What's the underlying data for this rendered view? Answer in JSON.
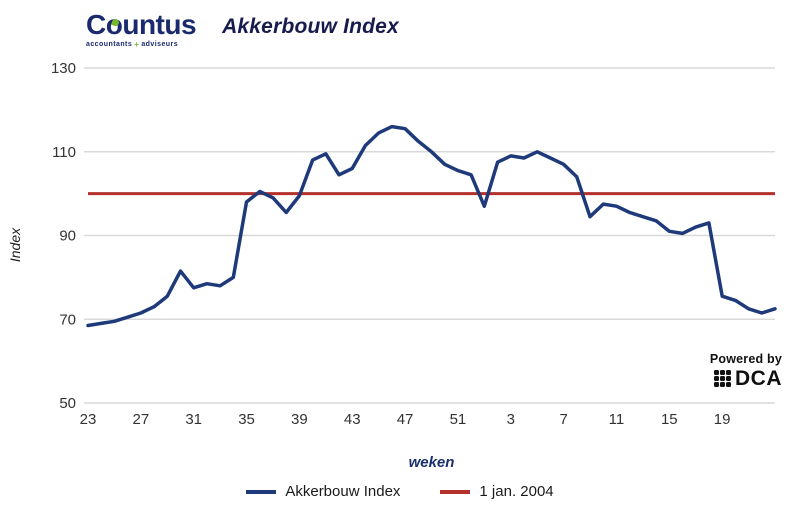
{
  "header": {
    "logo_name": "Countus",
    "logo_tagline_left": "accountants",
    "logo_tagline_right": "adviseurs",
    "title": "Akkerbouw Index"
  },
  "chart_data": {
    "type": "line",
    "title": "Akkerbouw Index",
    "xlabel": "weken",
    "ylabel": "Index",
    "ylim": [
      50,
      130
    ],
    "yticks": [
      130,
      110,
      90,
      70,
      50
    ],
    "xtick_every": 4,
    "xtick_labels_visible": [
      "23",
      "27",
      "31",
      "35",
      "39",
      "43",
      "47",
      "51",
      "3",
      "7",
      "11",
      "15",
      "19"
    ],
    "grid": true,
    "grid_color": "#d9d9d9",
    "tick_color": "#333333",
    "legend_position": "bottom",
    "categories": [
      "23",
      "24",
      "25",
      "26",
      "27",
      "28",
      "29",
      "30",
      "31",
      "32",
      "33",
      "34",
      "35",
      "36",
      "37",
      "38",
      "39",
      "40",
      "41",
      "42",
      "43",
      "44",
      "45",
      "46",
      "47",
      "48",
      "49",
      "50",
      "51",
      "52",
      "1",
      "2",
      "3",
      "4",
      "5",
      "6",
      "7",
      "8",
      "9",
      "10",
      "11",
      "12",
      "13",
      "14",
      "15",
      "16",
      "17",
      "18",
      "19",
      "20",
      "21",
      "22",
      "23"
    ],
    "series": [
      {
        "name": "Akkerbouw Index",
        "color": "#1e3a7a",
        "values": [
          68.5,
          69,
          69.5,
          70.5,
          71.5,
          73,
          75.5,
          81.5,
          77.5,
          78.5,
          78,
          80,
          98,
          100.5,
          99,
          95.5,
          99.5,
          108,
          109.5,
          104.5,
          106,
          111.5,
          114.5,
          116,
          115.5,
          112.5,
          110,
          107,
          105.5,
          104.5,
          97,
          107.5,
          109,
          108.5,
          110,
          108.5,
          107,
          104,
          94.5,
          97.5,
          97,
          95.5,
          94.5,
          93.5,
          91,
          90.5,
          92,
          93,
          75.5,
          74.5,
          72.5,
          71.5,
          72.5
        ]
      }
    ],
    "reference_line": {
      "label": "1 jan. 2004",
      "value": 100,
      "color": "#b5312b"
    }
  },
  "badge": {
    "line1": "Powered by",
    "line2": "DCA"
  },
  "colors": {
    "brand_navy": "#1a2a6c",
    "brand_green": "#76b82a",
    "title_navy": "#171c4d"
  }
}
